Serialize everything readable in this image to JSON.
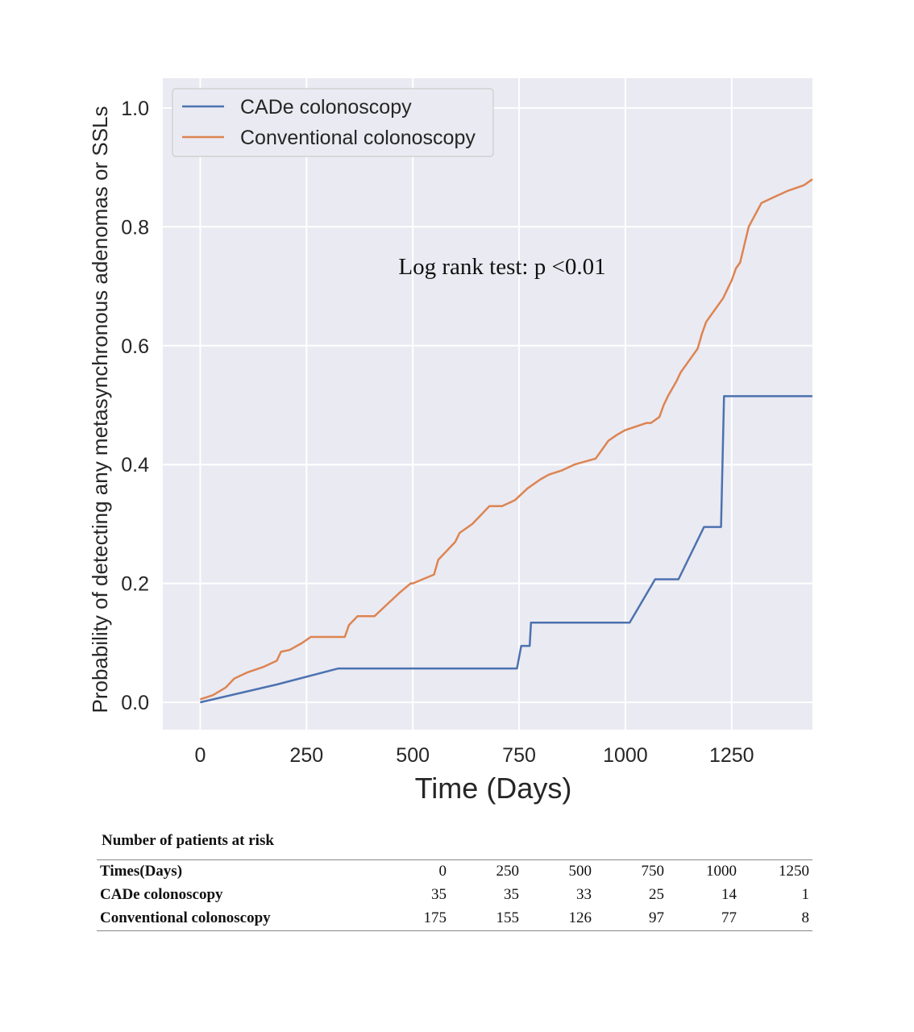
{
  "chart_data": {
    "type": "line",
    "xlabel": "Time (Days)",
    "ylabel": "Probability of detecting any metasynchronous adenomas or SSLs",
    "xlim": [
      -88,
      1440
    ],
    "ylim": [
      -0.046,
      1.05
    ],
    "xticks": [
      0,
      250,
      500,
      750,
      1000,
      1250
    ],
    "yticks": [
      0.0,
      0.2,
      0.4,
      0.6,
      0.8,
      1.0
    ],
    "grid": true,
    "legend_position": "top-left",
    "annotation": "Log rank test: p <0.01",
    "series": [
      {
        "name": "CADe colonoscopy",
        "color": "#4c72b0",
        "x": [
          0,
          180,
          325,
          745,
          755,
          775,
          778,
          1010,
          1070,
          1125,
          1185,
          1225,
          1232,
          1440
        ],
        "y": [
          0.0,
          0.03,
          0.057,
          0.057,
          0.095,
          0.095,
          0.134,
          0.134,
          0.207,
          0.207,
          0.295,
          0.295,
          0.515,
          0.515
        ]
      },
      {
        "name": "Conventional colonoscopy",
        "color": "#dd8452",
        "x": [
          0,
          30,
          60,
          80,
          110,
          150,
          180,
          190,
          210,
          240,
          260,
          290,
          340,
          350,
          370,
          410,
          440,
          470,
          495,
          500,
          550,
          560,
          580,
          600,
          610,
          640,
          660,
          680,
          710,
          740,
          755,
          770,
          800,
          820,
          850,
          880,
          930,
          950,
          960,
          980,
          1000,
          1050,
          1060,
          1080,
          1090,
          1100,
          1120,
          1130,
          1150,
          1170,
          1180,
          1190,
          1200,
          1210,
          1230,
          1240,
          1250,
          1260,
          1270,
          1290,
          1320,
          1350,
          1380,
          1420,
          1440
        ],
        "y": [
          0.005,
          0.012,
          0.025,
          0.04,
          0.05,
          0.06,
          0.07,
          0.085,
          0.088,
          0.1,
          0.11,
          0.11,
          0.11,
          0.13,
          0.145,
          0.145,
          0.165,
          0.185,
          0.2,
          0.2,
          0.215,
          0.24,
          0.255,
          0.27,
          0.285,
          0.3,
          0.315,
          0.33,
          0.33,
          0.34,
          0.35,
          0.36,
          0.375,
          0.383,
          0.39,
          0.4,
          0.41,
          0.43,
          0.44,
          0.45,
          0.458,
          0.47,
          0.47,
          0.48,
          0.5,
          0.515,
          0.54,
          0.555,
          0.575,
          0.595,
          0.62,
          0.64,
          0.65,
          0.66,
          0.68,
          0.695,
          0.71,
          0.73,
          0.74,
          0.8,
          0.84,
          0.85,
          0.86,
          0.87,
          0.88
        ]
      }
    ]
  },
  "risk_table": {
    "title": "Number of patients at risk",
    "header_label": "Times(Days)",
    "times": [
      "0",
      "250",
      "500",
      "750",
      "1000",
      "1250"
    ],
    "rows": [
      {
        "label": "CADe colonoscopy",
        "values": [
          "35",
          "35",
          "33",
          "25",
          "14",
          "1"
        ]
      },
      {
        "label": "Conventional colonoscopy",
        "values": [
          "175",
          "155",
          "126",
          "97",
          "77",
          "8"
        ]
      }
    ]
  }
}
